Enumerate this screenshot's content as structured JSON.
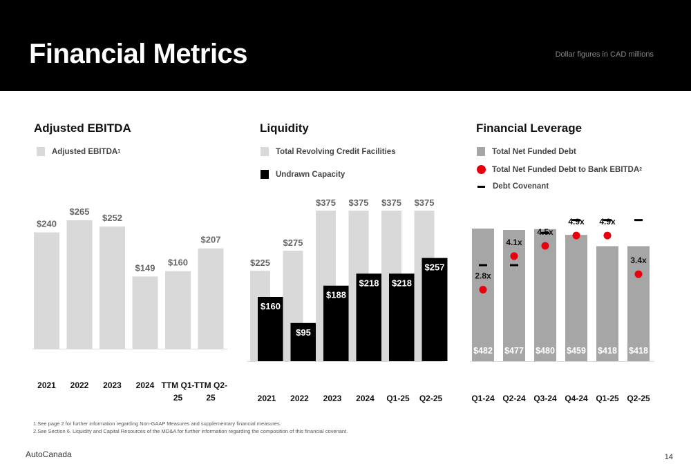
{
  "header": {
    "title": "Financial Metrics",
    "note": "Dollar figures in CAD millions"
  },
  "panels": {
    "ebitda": {
      "title": "Adjusted EBITDA",
      "legend": [
        {
          "label": "Adjusted EBITDA",
          "sup": "1",
          "color": "#d9d9d9"
        }
      ]
    },
    "liquidity": {
      "title": "Liquidity",
      "legend": [
        {
          "label": "Total Revolving Credit Facilities",
          "color": "#d9d9d9"
        },
        {
          "label": "Undrawn Capacity",
          "color": "#000000"
        }
      ]
    },
    "leverage": {
      "title": "Financial Leverage",
      "legend": [
        {
          "label": "Total Net Funded Debt",
          "color": "#a6a6a6"
        },
        {
          "label": "Total Net Funded Debt to Bank EBITDA",
          "sup": "2",
          "color": "#e8000d"
        },
        {
          "label": "Debt Covenant",
          "color": "#000000"
        }
      ]
    }
  },
  "chart_data": [
    {
      "type": "bar",
      "title": "Adjusted EBITDA",
      "categories": [
        [
          "2021"
        ],
        [
          "2022"
        ],
        [
          "2023"
        ],
        [
          "2024"
        ],
        [
          "TTM Q1-",
          "25"
        ],
        [
          "TTM Q2-",
          "25"
        ]
      ],
      "series": [
        {
          "name": "Adjusted EBITDA",
          "values": [
            240,
            265,
            252,
            149,
            160,
            207
          ],
          "labels": [
            "$240",
            "$265",
            "$252",
            "$149",
            "$160",
            "$207"
          ],
          "color": "#d9d9d9"
        }
      ],
      "ylim": [
        0,
        265
      ]
    },
    {
      "type": "bar",
      "title": "Liquidity",
      "categories": [
        [
          "2021"
        ],
        [
          "2022"
        ],
        [
          "2023"
        ],
        [
          "2024"
        ],
        [
          "Q1-25"
        ],
        [
          "Q2-25"
        ]
      ],
      "series": [
        {
          "name": "Total Revolving Credit Facilities",
          "values": [
            225,
            275,
            375,
            375,
            375,
            375
          ],
          "labels": [
            "$225",
            "$275",
            "$375",
            "$375",
            "$375",
            "$375"
          ],
          "color": "#d9d9d9"
        },
        {
          "name": "Undrawn Capacity",
          "values": [
            160,
            95,
            188,
            218,
            218,
            257
          ],
          "labels": [
            "$160",
            "$95",
            "$188",
            "$218",
            "$218",
            "$257"
          ],
          "color": "#000000"
        }
      ],
      "ylim": [
        0,
        375
      ]
    },
    {
      "type": "bar",
      "title": "Financial Leverage",
      "categories": [
        [
          "Q1-24"
        ],
        [
          "Q2-24"
        ],
        [
          "Q3-24"
        ],
        [
          "Q4-24"
        ],
        [
          "Q1-25"
        ],
        [
          "Q2-25"
        ]
      ],
      "series": [
        {
          "name": "Total Net Funded Debt",
          "values": [
            482,
            477,
            480,
            459,
            418,
            418
          ],
          "labels": [
            "$482",
            "$477",
            "$480",
            "$459",
            "$418",
            "$418"
          ],
          "color": "#a6a6a6"
        },
        {
          "name": "Total Net Funded Debt to Bank EBITDA",
          "values": [
            2.8,
            4.1,
            4.5,
            4.9,
            4.9,
            3.4
          ],
          "labels": [
            "2.8x",
            "4.1x",
            "4.5x",
            "4.9x",
            "4.9x",
            "3.4x"
          ],
          "color": "#e8000d"
        },
        {
          "name": "Debt Covenant",
          "values": [
            3.75,
            3.75,
            5.0,
            5.5,
            5.5,
            5.5
          ],
          "color": "#000000"
        }
      ],
      "ylim": [
        0,
        6
      ]
    }
  ],
  "footnotes": [
    "1.See page 2 for further information regarding Non-GAAP Measures and supplementary financial measures.",
    "2.See Section 6. Liquidity and Capital Resources of the MD&A for further information regarding the composition of this financial covenant."
  ],
  "footer": {
    "brand": "AutoCanada",
    "page": "14"
  }
}
